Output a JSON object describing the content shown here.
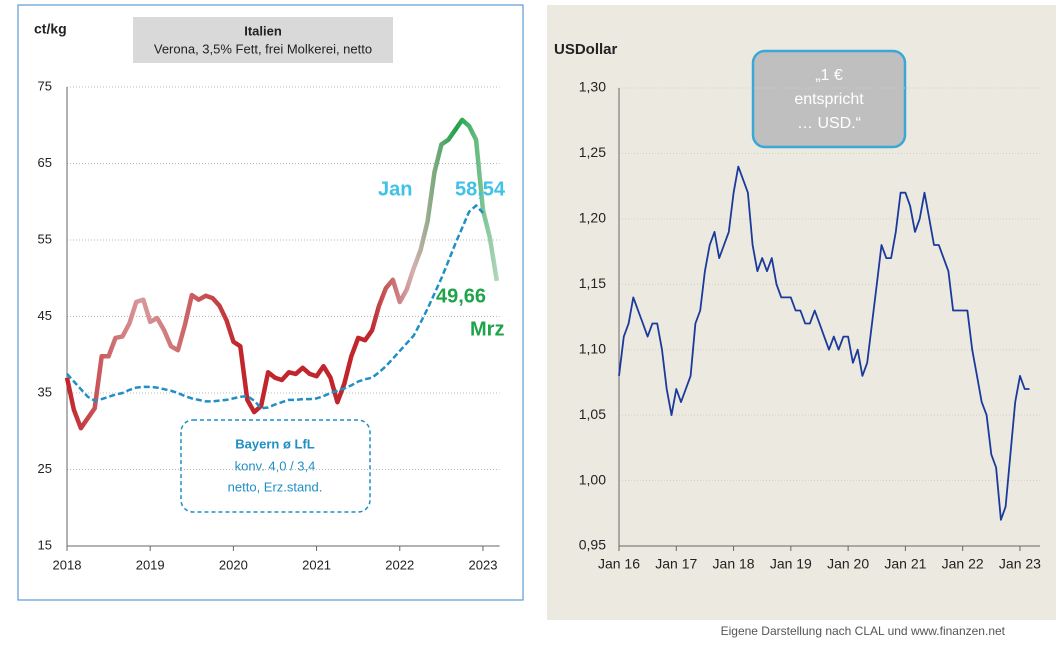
{
  "chart_data": [
    {
      "type": "line",
      "ylabel": "ct/kg",
      "x": [
        2018,
        2018.083,
        2018.167,
        2018.25,
        2018.333,
        2018.417,
        2018.5,
        2018.583,
        2018.667,
        2018.75,
        2018.833,
        2018.917,
        2019,
        2019.083,
        2019.167,
        2019.25,
        2019.333,
        2019.417,
        2019.5,
        2019.583,
        2019.667,
        2019.75,
        2019.833,
        2019.917,
        2020,
        2020.083,
        2020.167,
        2020.25,
        2020.333,
        2020.417,
        2020.5,
        2020.583,
        2020.667,
        2020.75,
        2020.833,
        2020.917,
        2021,
        2021.083,
        2021.167,
        2021.25,
        2021.333,
        2021.417,
        2021.5,
        2021.583,
        2021.667,
        2021.75,
        2021.833,
        2021.917,
        2022,
        2022.083,
        2022.167,
        2022.25,
        2022.333,
        2022.417,
        2022.5,
        2022.583,
        2022.667,
        2022.75,
        2022.833,
        2022.917,
        2023,
        2023.083,
        2023.167
      ],
      "series": [
        {
          "name": "Italien",
          "subtitle": "Verona, 3,5% Fett, frei Molkerei, netto",
          "color": "#c0262b",
          "values": [
            37,
            32.8,
            30.4,
            31.7,
            33,
            39.8,
            39.8,
            42.2,
            42.4,
            44.1,
            46.9,
            47.2,
            44.3,
            44.8,
            43.2,
            41.1,
            40.6,
            43.9,
            47.8,
            47.2,
            47.7,
            47.4,
            46.4,
            44.5,
            41.7,
            41.1,
            34.1,
            32.5,
            33.3,
            37.7,
            37,
            36.7,
            37.7,
            37.5,
            38.3,
            37.5,
            37.2,
            38.5,
            37,
            33.8,
            36.2,
            39.8,
            42.2,
            41.9,
            43.2,
            46.4,
            48.7,
            49.8,
            46.9,
            48.5,
            51.3,
            53.7,
            57.4,
            63.9,
            67.5,
            68.1,
            69.4,
            70.7,
            69.9,
            68.1,
            58.9,
            55.3,
            49.66
          ]
        },
        {
          "name": "Bayern ø LfL",
          "subtitle": [
            "konv. 4,0 / 3,4",
            "netto, Erz.stand."
          ],
          "color": "#1f8fc4",
          "values": [
            37.5,
            36.5,
            35.5,
            34.5,
            34,
            34.2,
            34.5,
            34.8,
            35,
            35.4,
            35.7,
            35.8,
            35.8,
            35.7,
            35.5,
            35.3,
            35,
            34.6,
            34.3,
            34.1,
            33.9,
            33.9,
            34,
            34.1,
            34.3,
            34.5,
            34.6,
            34,
            33,
            33.1,
            33.5,
            33.8,
            34.1,
            34.1,
            34.2,
            34.2,
            34.3,
            34.6,
            35,
            35.3,
            35.6,
            36,
            36.5,
            36.8,
            37,
            37.7,
            38.5,
            39.5,
            40.5,
            41.5,
            42.5,
            44.2,
            46,
            48,
            50,
            52.2,
            54.5,
            56.6,
            58.7,
            59.5,
            58.54,
            null,
            null
          ]
        }
      ],
      "annotations": [
        {
          "text": "Jan",
          "color": "#3fc1e8"
        },
        {
          "text": "58,54",
          "color": "#3fc1e8"
        },
        {
          "text": "49,66",
          "color": "#1fa34a"
        },
        {
          "text": "Mrz",
          "color": "#1fa34a"
        }
      ],
      "xlim": [
        2018,
        2023.2
      ],
      "xticks": [
        2018,
        2019,
        2020,
        2021,
        2022,
        2023
      ],
      "ylim": [
        15,
        75
      ],
      "yticks": [
        15,
        25,
        35,
        45,
        55,
        65,
        75
      ],
      "grid": true
    },
    {
      "type": "line",
      "ylabel": "USDollar",
      "annotation": [
        "„1 €",
        "entspricht",
        "… USD.“"
      ],
      "color": "#1a3a9c",
      "x": [
        2016,
        2016.083,
        2016.167,
        2016.25,
        2016.333,
        2016.417,
        2016.5,
        2016.583,
        2016.667,
        2016.75,
        2016.833,
        2016.917,
        2017,
        2017.083,
        2017.167,
        2017.25,
        2017.333,
        2017.417,
        2017.5,
        2017.583,
        2017.667,
        2017.75,
        2017.833,
        2017.917,
        2018,
        2018.083,
        2018.167,
        2018.25,
        2018.333,
        2018.417,
        2018.5,
        2018.583,
        2018.667,
        2018.75,
        2018.833,
        2018.917,
        2019,
        2019.083,
        2019.167,
        2019.25,
        2019.333,
        2019.417,
        2019.5,
        2019.583,
        2019.667,
        2019.75,
        2019.833,
        2019.917,
        2020,
        2020.083,
        2020.167,
        2020.25,
        2020.333,
        2020.417,
        2020.5,
        2020.583,
        2020.667,
        2020.75,
        2020.833,
        2020.917,
        2021,
        2021.083,
        2021.167,
        2021.25,
        2021.333,
        2021.417,
        2021.5,
        2021.583,
        2021.667,
        2021.75,
        2021.833,
        2021.917,
        2022,
        2022.083,
        2022.167,
        2022.25,
        2022.333,
        2022.417,
        2022.5,
        2022.583,
        2022.667,
        2022.75,
        2022.833,
        2022.917,
        2023,
        2023.083,
        2023.167
      ],
      "values": [
        1.08,
        1.11,
        1.12,
        1.14,
        1.13,
        1.12,
        1.11,
        1.12,
        1.12,
        1.1,
        1.07,
        1.05,
        1.07,
        1.06,
        1.07,
        1.08,
        1.12,
        1.13,
        1.16,
        1.18,
        1.19,
        1.17,
        1.18,
        1.19,
        1.22,
        1.24,
        1.23,
        1.22,
        1.18,
        1.16,
        1.17,
        1.16,
        1.17,
        1.15,
        1.14,
        1.14,
        1.14,
        1.13,
        1.13,
        1.12,
        1.12,
        1.13,
        1.12,
        1.11,
        1.1,
        1.11,
        1.1,
        1.11,
        1.11,
        1.09,
        1.1,
        1.08,
        1.09,
        1.12,
        1.15,
        1.18,
        1.17,
        1.17,
        1.19,
        1.22,
        1.22,
        1.21,
        1.19,
        1.2,
        1.22,
        1.2,
        1.18,
        1.18,
        1.17,
        1.16,
        1.13,
        1.13,
        1.13,
        1.13,
        1.1,
        1.08,
        1.06,
        1.05,
        1.02,
        1.01,
        0.97,
        0.98,
        1.02,
        1.06,
        1.08,
        1.07,
        1.07
      ],
      "xlim": [
        2016,
        2023.35
      ],
      "xticks": [
        {
          "value": 2016,
          "label": "Jan 16"
        },
        {
          "value": 2017,
          "label": "Jan 17"
        },
        {
          "value": 2018,
          "label": "Jan 18"
        },
        {
          "value": 2019,
          "label": "Jan 19"
        },
        {
          "value": 2020,
          "label": "Jan 20"
        },
        {
          "value": 2021,
          "label": "Jan 21"
        },
        {
          "value": 2022,
          "label": "Jan 22"
        },
        {
          "value": 2023,
          "label": "Jan 23"
        }
      ],
      "ylim": [
        0.95,
        1.3
      ],
      "yticks": [
        {
          "value": 0.95,
          "label": "0,95"
        },
        {
          "value": 1.0,
          "label": "1,00"
        },
        {
          "value": 1.05,
          "label": "1,05"
        },
        {
          "value": 1.1,
          "label": "1,10"
        },
        {
          "value": 1.15,
          "label": "1,15"
        },
        {
          "value": 1.2,
          "label": "1,20"
        },
        {
          "value": 1.25,
          "label": "1,25"
        },
        {
          "value": 1.3,
          "label": "1,30"
        }
      ],
      "grid": true
    }
  ],
  "footer": "Eigene Darstellung nach CLAL und www.finanzen.net"
}
